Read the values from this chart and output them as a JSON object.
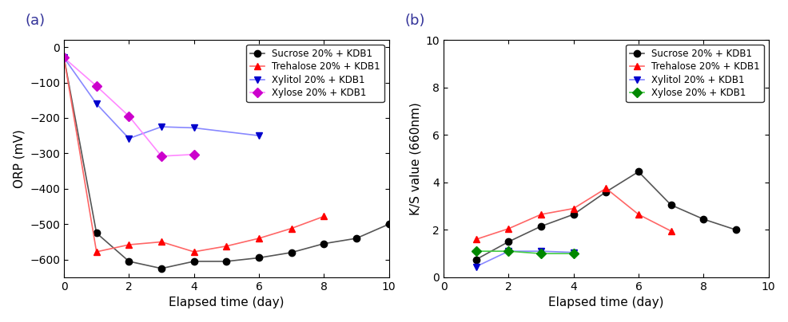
{
  "panel_a": {
    "title": "(a)",
    "xlabel": "Elapsed time (day)",
    "ylabel": "ORP (mV)",
    "xlim": [
      0,
      10
    ],
    "ylim": [
      -650,
      20
    ],
    "xticks": [
      0,
      2,
      4,
      6,
      8,
      10
    ],
    "yticks": [
      0,
      -100,
      -200,
      -300,
      -400,
      -500,
      -600
    ],
    "series": [
      {
        "label": "Sucrose 20% + KDB1",
        "color": "#555555",
        "marker": "o",
        "markercolor": "#000000",
        "x": [
          0,
          1,
          2,
          3,
          4,
          5,
          6,
          7,
          8,
          9,
          10
        ],
        "y": [
          -30,
          -525,
          -605,
          -625,
          -605,
          -605,
          -595,
          -580,
          -555,
          -540,
          -500
        ]
      },
      {
        "label": "Trehalose 20% + KDB1",
        "color": "#ff6666",
        "marker": "^",
        "markercolor": "#ff0000",
        "x": [
          0,
          1,
          2,
          3,
          4,
          5,
          6,
          7,
          8
        ],
        "y": [
          -30,
          -578,
          -558,
          -550,
          -578,
          -562,
          -540,
          -512,
          -478
        ]
      },
      {
        "label": "Xylitol 20% + KDB1",
        "color": "#8888ff",
        "marker": "v",
        "markercolor": "#0000cc",
        "x": [
          0,
          1,
          2,
          3,
          4,
          6
        ],
        "y": [
          -30,
          -160,
          -258,
          -225,
          -228,
          -250
        ]
      },
      {
        "label": "Xylose 20% + KDB1",
        "color": "#ff88ff",
        "marker": "D",
        "markercolor": "#cc00cc",
        "x": [
          0,
          1,
          2,
          3,
          4
        ],
        "y": [
          -30,
          -110,
          -195,
          -308,
          -303
        ]
      }
    ]
  },
  "panel_b": {
    "title": "(b)",
    "xlabel": "Elapsed time (day)",
    "ylabel": "K/S value (660nm)",
    "xlim": [
      0,
      10
    ],
    "ylim": [
      0,
      10
    ],
    "xticks": [
      0,
      2,
      4,
      6,
      8,
      10
    ],
    "yticks": [
      0,
      2,
      4,
      6,
      8,
      10
    ],
    "series": [
      {
        "label": "Sucrose 20% + KDB1",
        "color": "#555555",
        "marker": "o",
        "markercolor": "#000000",
        "x": [
          1,
          2,
          3,
          4,
          5,
          6,
          7,
          8,
          9
        ],
        "y": [
          0.75,
          1.5,
          2.15,
          2.65,
          3.6,
          4.45,
          3.05,
          2.45,
          2.0
        ]
      },
      {
        "label": "Trehalose 20% + KDB1",
        "color": "#ff6666",
        "marker": "^",
        "markercolor": "#ff0000",
        "x": [
          1,
          2,
          3,
          4,
          5,
          6,
          7
        ],
        "y": [
          1.6,
          2.05,
          2.65,
          2.9,
          3.75,
          2.65,
          1.95
        ]
      },
      {
        "label": "Xylitol 20% + KDB1",
        "color": "#8888ff",
        "marker": "v",
        "markercolor": "#0000cc",
        "x": [
          1,
          2,
          3,
          4
        ],
        "y": [
          0.45,
          1.1,
          1.1,
          1.05
        ]
      },
      {
        "label": "Xylose 20% + KDB1",
        "color": "#44cc44",
        "marker": "D",
        "markercolor": "#008800",
        "x": [
          1,
          2,
          3,
          4
        ],
        "y": [
          1.1,
          1.1,
          1.0,
          1.0
        ]
      }
    ]
  }
}
